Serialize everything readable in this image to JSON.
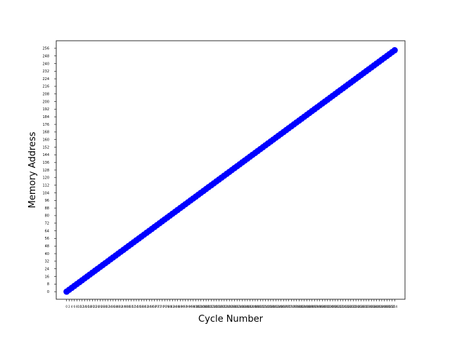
{
  "chart_data": {
    "type": "scatter",
    "title": "",
    "xlabel": "Cycle Number",
    "ylabel": "Memory Address",
    "x": {
      "start": 0,
      "end": 254,
      "step": 2
    },
    "y_equals_x": true,
    "xlim": [
      -8,
      262
    ],
    "ylim": [
      -8,
      264
    ],
    "xticks": {
      "start": 0,
      "end": 254,
      "step": 2
    },
    "yticks": [
      0,
      8,
      16,
      24,
      32,
      40,
      48,
      56,
      64,
      72,
      80,
      88,
      96,
      104,
      112,
      120,
      128,
      136,
      144,
      152,
      160,
      168,
      176,
      184,
      192,
      200,
      208,
      216,
      224,
      232,
      240,
      248,
      256
    ],
    "grid": false,
    "legend": "none",
    "colors": {
      "marker": "#0000ff",
      "axis": "#000000"
    }
  }
}
